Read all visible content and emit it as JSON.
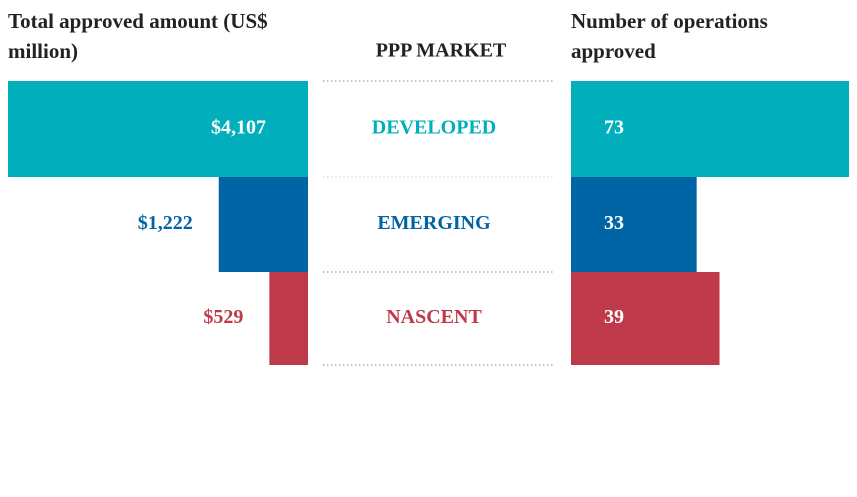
{
  "chart_data": {
    "type": "bar",
    "category_label": "PPP MARKET",
    "categories": [
      "DEVELOPED",
      "EMERGING",
      "NASCENT"
    ],
    "colors": [
      "#00afbb",
      "#0065a4",
      "#be3a4a"
    ],
    "series": [
      {
        "name": "Total approved amount (US$ million)",
        "values": [
          4107,
          1222,
          529
        ],
        "value_labels": [
          "$4,107",
          "$1,222",
          "$529"
        ]
      },
      {
        "name": "Number of operations approved",
        "values": [
          73,
          33,
          39
        ]
      }
    ]
  }
}
